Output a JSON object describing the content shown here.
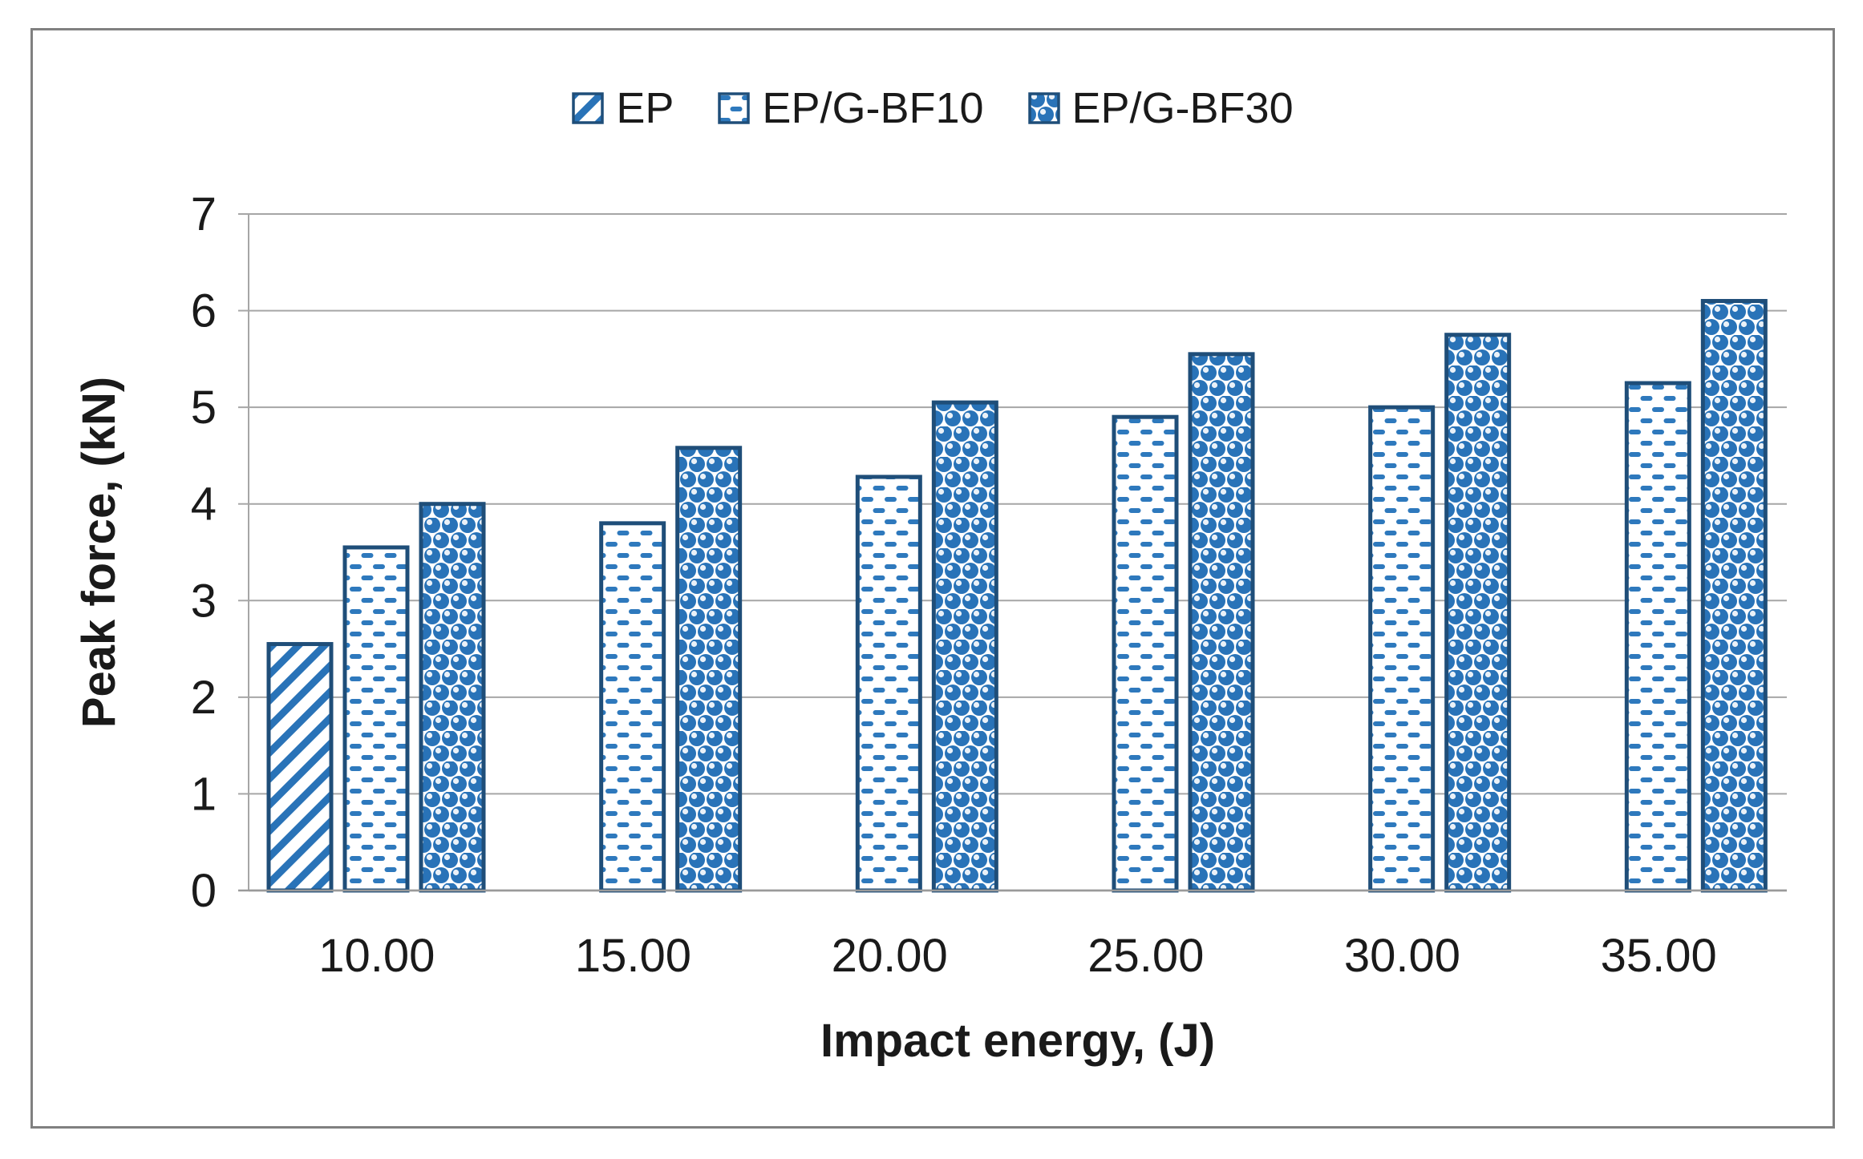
{
  "figure": {
    "background": "#ffffff",
    "frame_border_color": "#808080"
  },
  "chart_data": {
    "type": "bar",
    "title": "",
    "xlabel": "Impact energy, (J)",
    "ylabel": "Peak force, (kN)",
    "ylim": [
      0,
      7
    ],
    "yticks": [
      0,
      1,
      2,
      3,
      4,
      5,
      6,
      7
    ],
    "grid": true,
    "legend_position": "top-center",
    "categories": [
      "10.00",
      "15.00",
      "20.00",
      "25.00",
      "30.00",
      "35.00"
    ],
    "series": [
      {
        "name": "EP",
        "pattern": "ep",
        "values": [
          2.55,
          null,
          null,
          null,
          null,
          null
        ]
      },
      {
        "name": "EP/G-BF10",
        "pattern": "bf10",
        "values": [
          3.55,
          3.8,
          4.28,
          4.9,
          5.0,
          5.25
        ]
      },
      {
        "name": "EP/G-BF30",
        "pattern": "bf30",
        "values": [
          4.0,
          4.58,
          5.05,
          5.55,
          5.75,
          6.1
        ]
      }
    ]
  },
  "colors": {
    "pattern_blue": "#2973B8",
    "dash_blue": "#2E79BD",
    "bar_border": "#1F4E79",
    "gridline": "#A6A6A6",
    "axis_line": "#9A9A9A",
    "text": "#1A1A1A"
  }
}
